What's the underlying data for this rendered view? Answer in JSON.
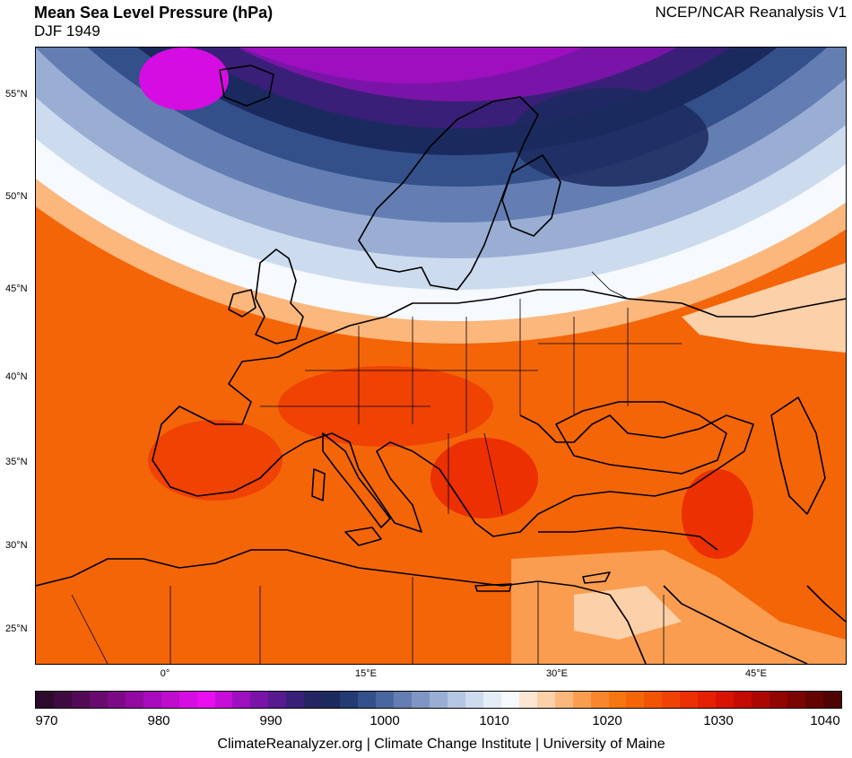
{
  "header": {
    "title": "Mean Sea Level Pressure (hPa)",
    "subtitle": "DJF 1949",
    "source": "NCEP/NCAR Reanalysis V1"
  },
  "map": {
    "lat_labels": [
      "55°N",
      "50°N",
      "45°N",
      "40°N",
      "35°N",
      "30°N",
      "25°N"
    ],
    "lon_labels": [
      "0°",
      "15°E",
      "30°E",
      "45°E"
    ]
  },
  "colorbar": {
    "labels": [
      "970",
      "980",
      "990",
      "1000",
      "1010",
      "1020",
      "1030",
      "1040"
    ],
    "range": [
      970,
      1040
    ],
    "colors": [
      "#2d0a2d",
      "#3f0a40",
      "#530a56",
      "#680a6e",
      "#7c0a86",
      "#920aa0",
      "#a80bbb",
      "#bf0ccf",
      "#d50de2",
      "#e80ef0",
      "#c60ed8",
      "#9e0fbf",
      "#7a14a8",
      "#581a8f",
      "#3a1f78",
      "#252463",
      "#1b2a5e",
      "#233a73",
      "#33508a",
      "#4a66a0",
      "#647eb3",
      "#7f96c4",
      "#9aaed4",
      "#b4c6e2",
      "#cddbee",
      "#e4edf7",
      "#f6f9fd",
      "#fde7d2",
      "#fcd0a8",
      "#fbb77c",
      "#fa9d50",
      "#f8862c",
      "#f67612",
      "#f46508",
      "#f25405",
      "#ef4203",
      "#ec3002",
      "#e51f02",
      "#d71302",
      "#c40c02",
      "#ab0802",
      "#920602",
      "#7a0502",
      "#630402",
      "#4e0402"
    ]
  },
  "footer": {
    "credit": "ClimateReanalyzer.org | Climate Change Institute | University of Maine"
  }
}
